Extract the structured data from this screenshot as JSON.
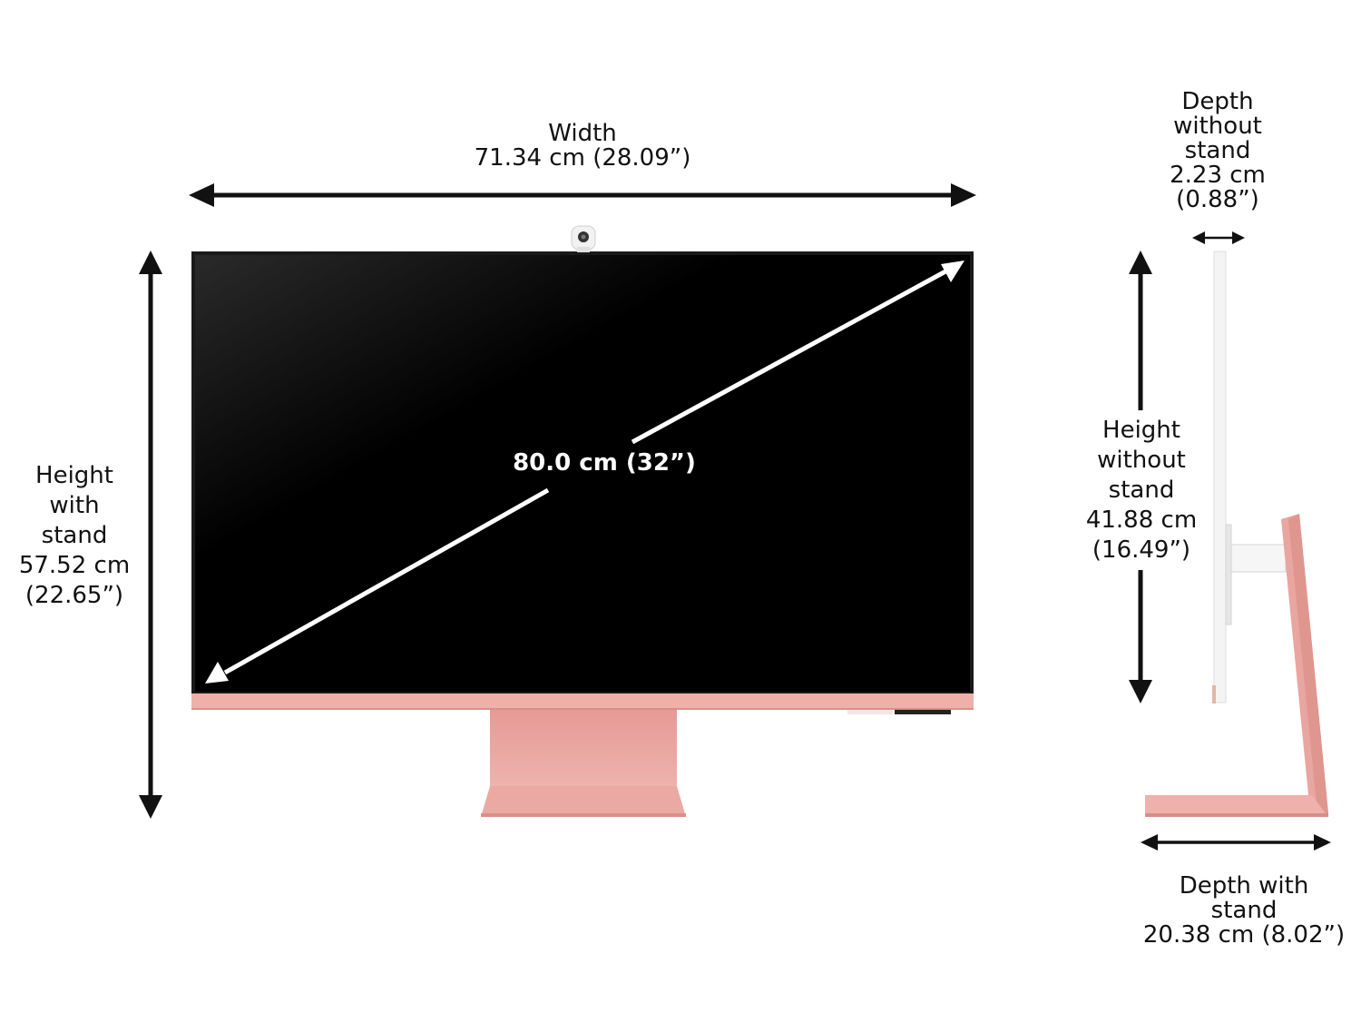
{
  "colors": {
    "arrow": "#111111",
    "screen": "#000000",
    "diagonal_arrow": "#ffffff",
    "stand_pink": "#eaa8a3",
    "stand_pink_dark": "#de958f",
    "side_panel": "#f3f3f3"
  },
  "labels": {
    "width": {
      "line1": "Width",
      "line2": "71.34 cm (28.09”)"
    },
    "height_with_stand": {
      "line1": "Height",
      "line2": "with",
      "line3": "stand",
      "line4": "57.52 cm",
      "line5": "(22.65”)"
    },
    "diagonal": {
      "line1": "80.0 cm (32”)"
    },
    "depth_without_stand": {
      "line1": "Depth",
      "line2": "without",
      "line3": "stand",
      "line4": "2.23 cm",
      "line5": "(0.88”)"
    },
    "height_without_stand": {
      "line1": "Height",
      "line2": "without",
      "line3": "stand",
      "line4": "41.88 cm",
      "line5": "(16.49”)"
    },
    "depth_with_stand": {
      "line1": "Depth with",
      "line2": "stand",
      "line3": "20.38 cm (8.02”)"
    }
  },
  "icons": {
    "camera": "webcam-icon"
  }
}
